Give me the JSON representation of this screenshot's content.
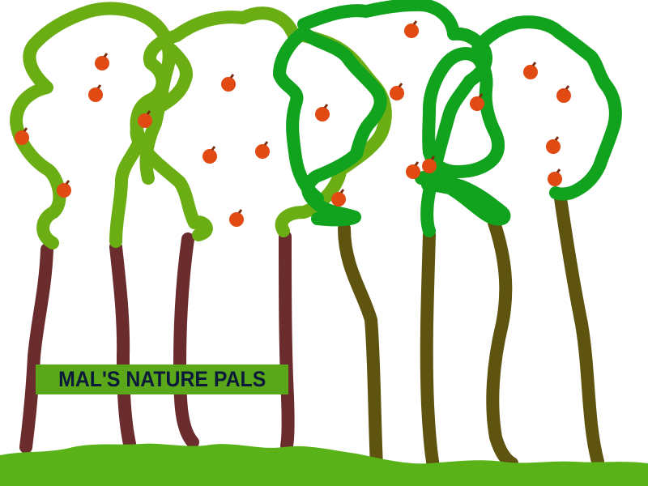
{
  "sign": {
    "title": "MAL'S NATURE PALS"
  },
  "colors": {
    "background": "#ffffff",
    "light_foliage": "#6aae14",
    "dark_foliage": "#11a21e",
    "dark_trunk": "#6b2c2e",
    "olive_trunk": "#5e5410",
    "fruit": "#e24a14",
    "fruit_stem": "#7a2e10",
    "grass": "#58b218",
    "sign_background": "#5aa81a",
    "sign_text": "#0b1a3a"
  },
  "icons": [
    "tree-icon",
    "orange-fruit-icon",
    "grass-ground"
  ]
}
